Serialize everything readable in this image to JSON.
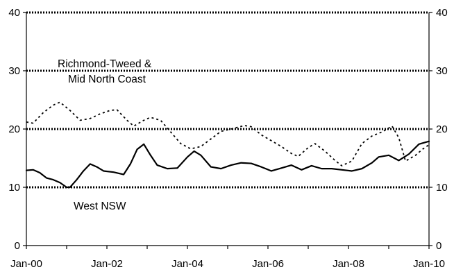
{
  "chart_data": {
    "type": "line",
    "title": "",
    "xlabel": "",
    "ylabel": "",
    "x_tick_labels": [
      "Jan-00",
      "Jan-02",
      "Jan-04",
      "Jan-06",
      "Jan-08",
      "Jan-10"
    ],
    "x_range": [
      "2000-01",
      "2010-01"
    ],
    "y_ticks": [
      0,
      10,
      20,
      30,
      40
    ],
    "ylim": [
      0,
      40
    ],
    "y_axis_both_sides": true,
    "grid": "horizontal dotted at 10, 20, 30, 40",
    "legend": "none (series labelled directly on plot)",
    "series": [
      {
        "name": "West NSW",
        "label_lines": [
          "West NSW"
        ],
        "style": "solid",
        "color": "#000000",
        "points": [
          [
            "2000-01",
            12.9
          ],
          [
            "2000-03",
            13.0
          ],
          [
            "2000-05",
            12.5
          ],
          [
            "2000-07",
            11.6
          ],
          [
            "2000-09",
            11.3
          ],
          [
            "2000-11",
            10.8
          ],
          [
            "2001-01",
            10.0
          ],
          [
            "2001-02",
            10.0
          ],
          [
            "2001-04",
            11.3
          ],
          [
            "2001-06",
            12.8
          ],
          [
            "2001-08",
            14.0
          ],
          [
            "2001-10",
            13.5
          ],
          [
            "2001-12",
            12.8
          ],
          [
            "2002-03",
            12.6
          ],
          [
            "2002-06",
            12.2
          ],
          [
            "2002-08",
            14.0
          ],
          [
            "2002-10",
            16.5
          ],
          [
            "2002-12",
            17.4
          ],
          [
            "2003-02",
            15.5
          ],
          [
            "2003-04",
            13.8
          ],
          [
            "2003-07",
            13.2
          ],
          [
            "2003-10",
            13.3
          ],
          [
            "2004-01",
            15.2
          ],
          [
            "2004-03",
            16.2
          ],
          [
            "2004-05",
            15.5
          ],
          [
            "2004-08",
            13.5
          ],
          [
            "2004-11",
            13.2
          ],
          [
            "2005-02",
            13.8
          ],
          [
            "2005-05",
            14.2
          ],
          [
            "2005-08",
            14.1
          ],
          [
            "2005-11",
            13.5
          ],
          [
            "2006-02",
            12.8
          ],
          [
            "2006-05",
            13.3
          ],
          [
            "2006-08",
            13.8
          ],
          [
            "2006-11",
            13.0
          ],
          [
            "2007-02",
            13.7
          ],
          [
            "2007-05",
            13.2
          ],
          [
            "2007-08",
            13.2
          ],
          [
            "2007-11",
            13.0
          ],
          [
            "2008-02",
            12.8
          ],
          [
            "2008-05",
            13.2
          ],
          [
            "2008-08",
            14.2
          ],
          [
            "2008-10",
            15.2
          ],
          [
            "2009-01",
            15.5
          ],
          [
            "2009-04",
            14.6
          ],
          [
            "2009-07",
            15.7
          ],
          [
            "2009-10",
            17.4
          ],
          [
            "2010-01",
            17.9
          ]
        ]
      },
      {
        "name": "Richmond-Tweed & Mid North Coast",
        "label_lines": [
          "Richmond-Tweed &",
          "Mid North Coast"
        ],
        "style": "dashed",
        "color": "#000000",
        "points": [
          [
            "2000-01",
            21.2
          ],
          [
            "2000-03",
            21.0
          ],
          [
            "2000-06",
            22.8
          ],
          [
            "2000-09",
            24.1
          ],
          [
            "2000-11",
            24.6
          ],
          [
            "2001-02",
            23.2
          ],
          [
            "2001-05",
            21.5
          ],
          [
            "2001-08",
            21.8
          ],
          [
            "2001-11",
            22.6
          ],
          [
            "2002-02",
            23.2
          ],
          [
            "2002-04",
            23.3
          ],
          [
            "2002-07",
            21.5
          ],
          [
            "2002-09",
            20.5
          ],
          [
            "2002-12",
            21.5
          ],
          [
            "2003-02",
            22.0
          ],
          [
            "2003-05",
            21.5
          ],
          [
            "2003-08",
            19.5
          ],
          [
            "2003-11",
            17.5
          ],
          [
            "2004-02",
            16.6
          ],
          [
            "2004-05",
            17.0
          ],
          [
            "2004-08",
            18.3
          ],
          [
            "2004-11",
            19.6
          ],
          [
            "2005-02",
            20.0
          ],
          [
            "2005-06",
            20.6
          ],
          [
            "2005-08",
            20.4
          ],
          [
            "2005-11",
            19.0
          ],
          [
            "2006-02",
            18.0
          ],
          [
            "2006-05",
            17.0
          ],
          [
            "2006-08",
            15.8
          ],
          [
            "2006-10",
            15.3
          ],
          [
            "2007-01",
            16.8
          ],
          [
            "2007-03",
            17.5
          ],
          [
            "2007-06",
            16.2
          ],
          [
            "2007-09",
            14.6
          ],
          [
            "2007-11",
            13.7
          ],
          [
            "2008-02",
            14.5
          ],
          [
            "2008-05",
            17.5
          ],
          [
            "2008-08",
            18.8
          ],
          [
            "2008-11",
            19.5
          ],
          [
            "2009-02",
            20.5
          ],
          [
            "2009-04",
            18.5
          ],
          [
            "2009-06",
            14.5
          ],
          [
            "2009-09",
            15.5
          ],
          [
            "2009-11",
            16.5
          ],
          [
            "2010-01",
            17.3
          ]
        ]
      }
    ]
  }
}
